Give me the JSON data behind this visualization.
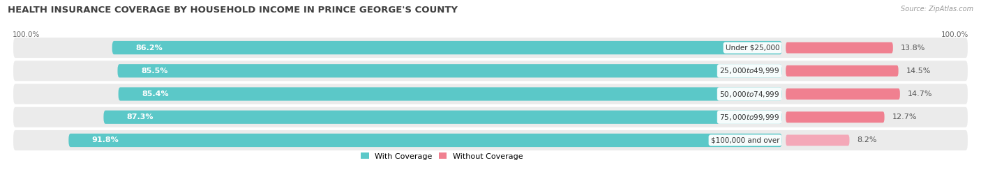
{
  "title": "HEALTH INSURANCE COVERAGE BY HOUSEHOLD INCOME IN PRINCE GEORGE'S COUNTY",
  "source": "Source: ZipAtlas.com",
  "categories": [
    "Under $25,000",
    "$25,000 to $49,999",
    "$50,000 to $74,999",
    "$75,000 to $99,999",
    "$100,000 and over"
  ],
  "with_coverage": [
    86.2,
    85.5,
    85.4,
    87.3,
    91.8
  ],
  "without_coverage": [
    13.8,
    14.5,
    14.7,
    12.7,
    8.2
  ],
  "coverage_color": "#5BC8C8",
  "no_coverage_color": "#F08090",
  "no_coverage_color_last": "#F4A8B8",
  "row_bg_color": "#EBEBEB",
  "title_fontsize": 9.5,
  "label_fontsize": 8,
  "tick_fontsize": 8,
  "bar_height": 0.58,
  "figsize": [
    14.06,
    2.7
  ],
  "dpi": 100
}
